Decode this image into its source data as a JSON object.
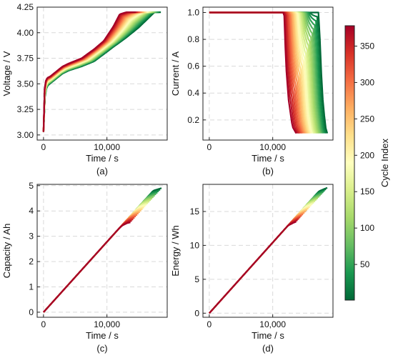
{
  "chart_data": [
    {
      "id": "a",
      "type": "line",
      "panel_label": "(a)",
      "xlabel": "Time / s",
      "ylabel": "Voltage / V",
      "xlim": [
        -1000,
        19500
      ],
      "ylim": [
        2.95,
        4.25
      ],
      "xticks": [
        0,
        10000
      ],
      "xtick_labels": [
        "0",
        "10,000"
      ],
      "yticks": [
        3.0,
        3.25,
        3.5,
        3.75,
        4.0,
        4.25
      ],
      "ytick_labels": [
        "3.00",
        "3.25",
        "3.50",
        "3.75",
        "4.00",
        "4.25"
      ],
      "grid": true,
      "series_first_cycle": {
        "x": [
          0,
          100,
          300,
          600,
          1000,
          2000,
          3000,
          4000,
          6000,
          8000,
          9500,
          11000,
          13000,
          15000,
          17500,
          18500
        ],
        "y": [
          3.03,
          3.28,
          3.42,
          3.48,
          3.5,
          3.55,
          3.6,
          3.63,
          3.67,
          3.72,
          3.79,
          3.86,
          3.95,
          4.05,
          4.2,
          4.2
        ]
      },
      "series_last_cycle": {
        "x": [
          0,
          100,
          300,
          600,
          1000,
          2000,
          3000,
          4000,
          6000,
          8000,
          9500,
          11000,
          12000,
          13000,
          14500
        ],
        "y": [
          3.03,
          3.4,
          3.52,
          3.56,
          3.57,
          3.62,
          3.67,
          3.7,
          3.75,
          3.84,
          3.92,
          4.06,
          4.18,
          4.2,
          4.2
        ]
      }
    },
    {
      "id": "b",
      "type": "line",
      "panel_label": "(b)",
      "xlabel": "Time / s",
      "ylabel": "Current / A",
      "xlim": [
        -1000,
        19500
      ],
      "ylim": [
        0.05,
        1.04
      ],
      "xticks": [
        0,
        10000
      ],
      "xtick_labels": [
        "0",
        "10,000"
      ],
      "yticks": [
        0.2,
        0.4,
        0.6,
        0.8,
        1.0
      ],
      "ytick_labels": [
        "0.2",
        "0.4",
        "0.6",
        "0.8",
        "1.0"
      ],
      "grid": true,
      "series_first_cycle": {
        "x": [
          0,
          17300,
          17400,
          17600,
          17900,
          18300,
          18600
        ],
        "y": [
          1.0,
          1.0,
          0.85,
          0.6,
          0.35,
          0.15,
          0.1
        ]
      },
      "series_last_cycle": {
        "x": [
          0,
          11800,
          11900,
          12100,
          12500,
          13100,
          13700
        ],
        "y": [
          1.0,
          1.0,
          0.85,
          0.6,
          0.35,
          0.15,
          0.1
        ]
      }
    },
    {
      "id": "c",
      "type": "line",
      "panel_label": "(c)",
      "xlabel": "Time / s",
      "ylabel": "Capacity / Ah",
      "xlim": [
        -1000,
        19500
      ],
      "ylim": [
        -0.2,
        5.05
      ],
      "xticks": [
        0,
        10000
      ],
      "xtick_labels": [
        "0",
        "10,000"
      ],
      "yticks": [
        0,
        1,
        2,
        3,
        4,
        5
      ],
      "ytick_labels": [
        "0",
        "1",
        "2",
        "3",
        "4",
        "5"
      ],
      "grid": true,
      "series_first_cycle": {
        "x": [
          0,
          17300,
          18600
        ],
        "y": [
          0,
          4.8,
          4.9
        ]
      },
      "series_last_cycle": {
        "x": [
          0,
          11800,
          12400,
          13200,
          13700
        ],
        "y": [
          0,
          3.28,
          3.42,
          3.52,
          3.55
        ]
      }
    },
    {
      "id": "d",
      "type": "line",
      "panel_label": "(d)",
      "xlabel": "Time / s",
      "ylabel": "Energy / Wh",
      "xlim": [
        -1000,
        19500
      ],
      "ylim": [
        -0.6,
        19.0
      ],
      "xticks": [
        0,
        10000
      ],
      "xtick_labels": [
        "0",
        "10,000"
      ],
      "yticks": [
        0,
        5,
        10,
        15
      ],
      "ytick_labels": [
        "0",
        "5",
        "10",
        "15"
      ],
      "grid": true,
      "series_first_cycle": {
        "x": [
          0,
          17300,
          18600
        ],
        "y": [
          0,
          18.0,
          18.5
        ]
      },
      "series_last_cycle": {
        "x": [
          0,
          11800,
          12400,
          13200,
          13700
        ],
        "y": [
          0,
          12.3,
          12.9,
          13.3,
          13.5
        ]
      }
    }
  ],
  "colorbar": {
    "label": "Cycle Index",
    "min": 1,
    "max": 378,
    "ticks": [
      50,
      100,
      150,
      200,
      250,
      300,
      350
    ],
    "tick_labels": [
      "50",
      "100",
      "150",
      "200",
      "250",
      "300",
      "350"
    ],
    "colors": [
      "#006837",
      "#1a9850",
      "#66bd63",
      "#a6d96a",
      "#d9ef8b",
      "#ffffbf",
      "#fee08b",
      "#fdae61",
      "#f46d43",
      "#d73027",
      "#a50026"
    ]
  },
  "n_curves": 24
}
